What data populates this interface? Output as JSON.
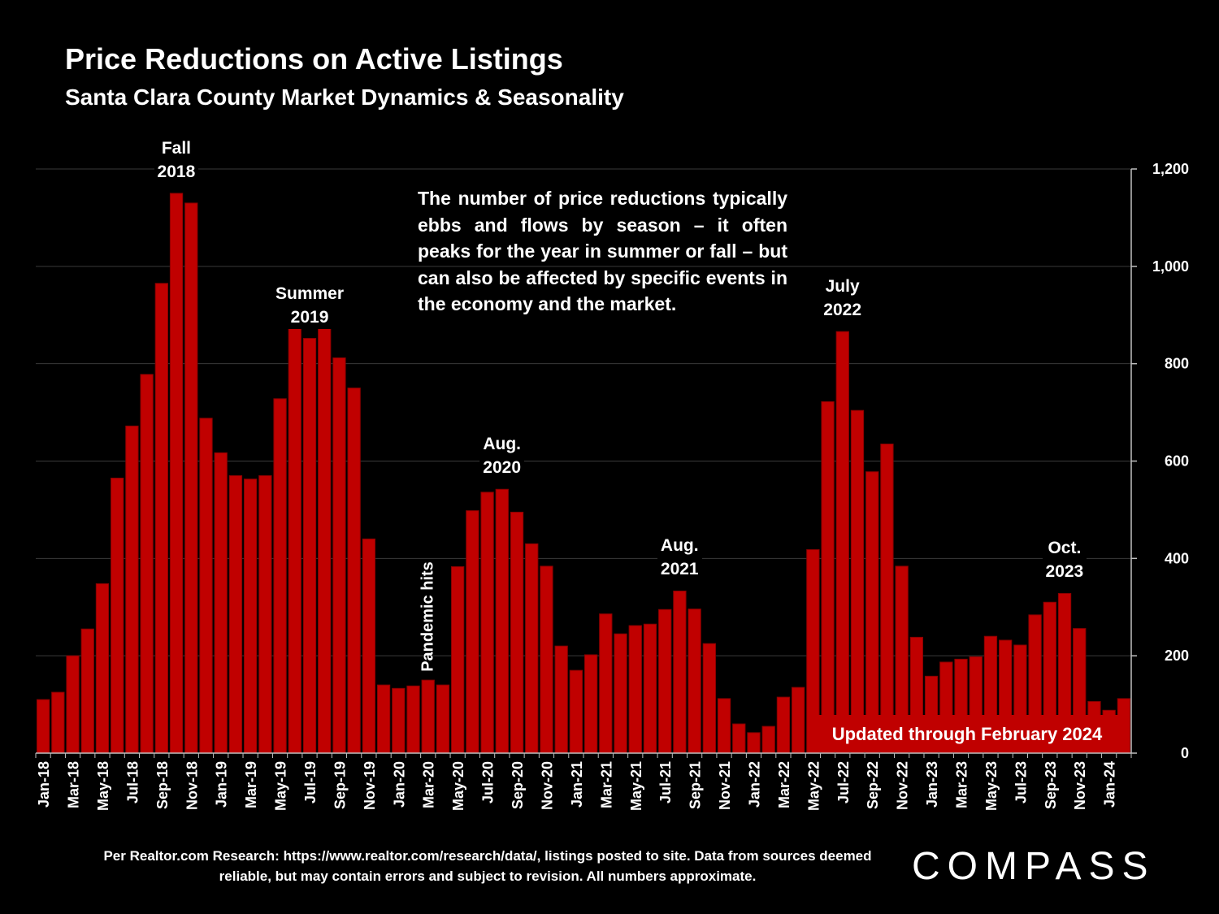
{
  "title": "Price Reductions on Active Listings",
  "subtitle": "Santa Clara County Market Dynamics & Seasonality",
  "note": "The number of price reductions typically ebbs and flows by season – it often peaks for the year in summer or fall – but can also be affected by specific events in the economy and the market.",
  "source": "Per Realtor.com Research:  https://www.realtor.com/research/data/, listings posted to site. Data from sources deemed reliable, but may contain errors and subject to revision. All numbers approximate.",
  "updated": "Updated through February 2024",
  "logo": "COMPASS",
  "colors": {
    "bar": "#c00000",
    "background": "#000000",
    "text": "#ffffff",
    "grid": "#3a3a3a"
  },
  "chart_data": {
    "type": "bar",
    "title": "Price Reductions on Active Listings",
    "subtitle": "Santa Clara County Market Dynamics & Seasonality",
    "y_axis_side": "right",
    "ylim": [
      0,
      1200
    ],
    "yticks": [
      0,
      200,
      400,
      600,
      800,
      1000,
      1200
    ],
    "ytick_labels": [
      "0",
      "200",
      "400",
      "600",
      "800",
      "1,000",
      "1,200"
    ],
    "grid": true,
    "categories": [
      "Jan-18",
      "Feb-18",
      "Mar-18",
      "Apr-18",
      "May-18",
      "Jun-18",
      "Jul-18",
      "Aug-18",
      "Sep-18",
      "Oct-18",
      "Nov-18",
      "Dec-18",
      "Jan-19",
      "Feb-19",
      "Mar-19",
      "Apr-19",
      "May-19",
      "Jun-19",
      "Jul-19",
      "Aug-19",
      "Sep-19",
      "Oct-19",
      "Nov-19",
      "Dec-19",
      "Jan-20",
      "Feb-20",
      "Mar-20",
      "Apr-20",
      "May-20",
      "Jun-20",
      "Jul-20",
      "Aug-20",
      "Sep-20",
      "Oct-20",
      "Nov-20",
      "Dec-20",
      "Jan-21",
      "Feb-21",
      "Mar-21",
      "Apr-21",
      "May-21",
      "Jun-21",
      "Jul-21",
      "Aug-21",
      "Sep-21",
      "Oct-21",
      "Nov-21",
      "Dec-21",
      "Jan-22",
      "Feb-22",
      "Mar-22",
      "Apr-22",
      "May-22",
      "Jun-22",
      "Jul-22",
      "Aug-22",
      "Sep-22",
      "Oct-22",
      "Nov-22",
      "Dec-22",
      "Jan-23",
      "Feb-23",
      "Mar-23",
      "Apr-23",
      "May-23",
      "Jun-23",
      "Jul-23",
      "Aug-23",
      "Sep-23",
      "Oct-23",
      "Nov-23",
      "Dec-23",
      "Jan-24",
      "Feb-24"
    ],
    "xtick_labels": [
      "Jan-18",
      "Mar-18",
      "May-18",
      "Jul-18",
      "Sep-18",
      "Nov-18",
      "Jan-19",
      "Mar-19",
      "May-19",
      "Jul-19",
      "Sep-19",
      "Nov-19",
      "Jan-20",
      "Mar-20",
      "May-20",
      "Jul-20",
      "Sep-20",
      "Nov-20",
      "Jan-21",
      "Mar-21",
      "May-21",
      "Jul-21",
      "Sep-21",
      "Nov-21",
      "Jan-22",
      "Mar-22",
      "May-22",
      "Jul-22",
      "Sep-22",
      "Nov-22",
      "Jan-23",
      "Mar-23",
      "May-23",
      "Jul-23",
      "Sep-23",
      "Nov-23",
      "Jan-24"
    ],
    "values": [
      110,
      125,
      200,
      255,
      348,
      565,
      672,
      778,
      965,
      1150,
      1130,
      688,
      617,
      570,
      563,
      570,
      728,
      878,
      852,
      875,
      812,
      750,
      440,
      140,
      133,
      138,
      150,
      140,
      383,
      498,
      536,
      542,
      495,
      430,
      384,
      220,
      170,
      202,
      286,
      245,
      262,
      265,
      295,
      333,
      296,
      225,
      112,
      60,
      42,
      55,
      115,
      135,
      418,
      722,
      866,
      704,
      578,
      635,
      384,
      238,
      158,
      187,
      193,
      198,
      240,
      232,
      222,
      284,
      310,
      328,
      256,
      106,
      88,
      112
    ],
    "annotations": [
      {
        "lines": [
          "Fall",
          "2018"
        ],
        "category": "Oct-18"
      },
      {
        "lines": [
          "Summer",
          "2019"
        ],
        "category": "Jul-19"
      },
      {
        "lines": [
          "Aug.",
          "2020"
        ],
        "category": "Aug-20"
      },
      {
        "lines": [
          "Aug.",
          "2021"
        ],
        "category": "Aug-21"
      },
      {
        "lines": [
          "July",
          "2022"
        ],
        "category": "Jul-22"
      },
      {
        "lines": [
          "Oct.",
          "2023"
        ],
        "category": "Oct-23"
      }
    ],
    "vertical_annotation": {
      "text": "Pandemic hits",
      "category": "Mar-20"
    }
  }
}
